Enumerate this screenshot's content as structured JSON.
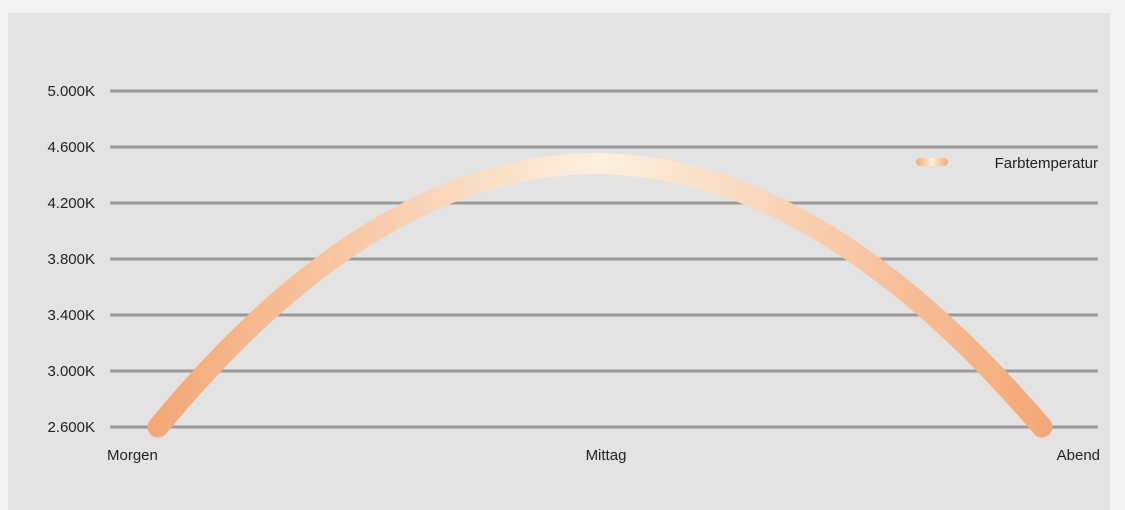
{
  "chart_data": {
    "type": "line",
    "title": "",
    "xlabel": "",
    "ylabel": "",
    "categories": [
      "Morgen",
      "Mittag",
      "Abend"
    ],
    "ylim": [
      2600,
      5000
    ],
    "y_ticks": [
      {
        "value": 2600,
        "label": "2.600K"
      },
      {
        "value": 3000,
        "label": "3.000K"
      },
      {
        "value": 3400,
        "label": "3.400K"
      },
      {
        "value": 3800,
        "label": "3.800K"
      },
      {
        "value": 4200,
        "label": "4.200K"
      },
      {
        "value": 4600,
        "label": "4.600K"
      },
      {
        "value": 5000,
        "label": "5.000K"
      }
    ],
    "grid": true,
    "legend": {
      "position": "top-right"
    },
    "series": [
      {
        "name": "Farbtemperatur",
        "curve": "parabolic",
        "values": [
          2600,
          4480,
          2600
        ],
        "colors": {
          "edge": "#f4a877",
          "peak": "#fdf0e0"
        }
      }
    ]
  }
}
